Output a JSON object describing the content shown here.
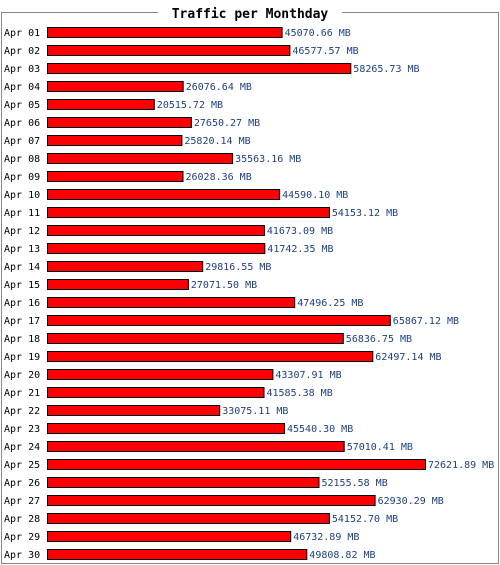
{
  "chart_data": {
    "type": "bar",
    "orientation": "horizontal",
    "title": "Traffic per Monthday",
    "unit": "MB",
    "categories": [
      "Apr 01",
      "Apr 02",
      "Apr 03",
      "Apr 04",
      "Apr 05",
      "Apr 06",
      "Apr 07",
      "Apr 08",
      "Apr 09",
      "Apr 10",
      "Apr 11",
      "Apr 12",
      "Apr 13",
      "Apr 14",
      "Apr 15",
      "Apr 16",
      "Apr 17",
      "Apr 18",
      "Apr 19",
      "Apr 20",
      "Apr 21",
      "Apr 22",
      "Apr 23",
      "Apr 24",
      "Apr 25",
      "Apr 26",
      "Apr 27",
      "Apr 28",
      "Apr 29",
      "Apr 30"
    ],
    "values": [
      45070.66,
      46577.57,
      58265.73,
      26076.64,
      20515.72,
      27650.27,
      25820.14,
      35563.16,
      26028.36,
      44590.1,
      54153.12,
      41673.09,
      41742.35,
      29816.55,
      27071.5,
      47496.25,
      65867.12,
      56836.75,
      62497.14,
      43307.91,
      41585.38,
      33075.11,
      45540.3,
      57010.41,
      72621.89,
      52155.58,
      62930.29,
      54152.7,
      46732.89,
      49808.82
    ],
    "value_labels": [
      "45070.66 MB",
      "46577.57 MB",
      "58265.73 MB",
      "26076.64 MB",
      "20515.72 MB",
      "27650.27 MB",
      "25820.14 MB",
      "35563.16 MB",
      "26028.36 MB",
      "44590.10 MB",
      "54153.12 MB",
      "41673.09 MB",
      "41742.35 MB",
      "29816.55 MB",
      "27071.50 MB",
      "47496.25 MB",
      "65867.12 MB",
      "56836.75 MB",
      "62497.14 MB",
      "43307.91 MB",
      "41585.38 MB",
      "33075.11 MB",
      "45540.30 MB",
      "57010.41 MB",
      "72621.89 MB",
      "52155.58 MB",
      "62930.29 MB",
      "54152.70 MB",
      "46732.89 MB",
      "49808.82 MB"
    ],
    "xlim": [
      0,
      72621.89
    ],
    "grid": false,
    "legend": "none",
    "colors": {
      "bar_fill": "#ff0000",
      "bar_stroke": "#000000",
      "value_label": "#1f3f7f",
      "frame": "#888888"
    }
  }
}
